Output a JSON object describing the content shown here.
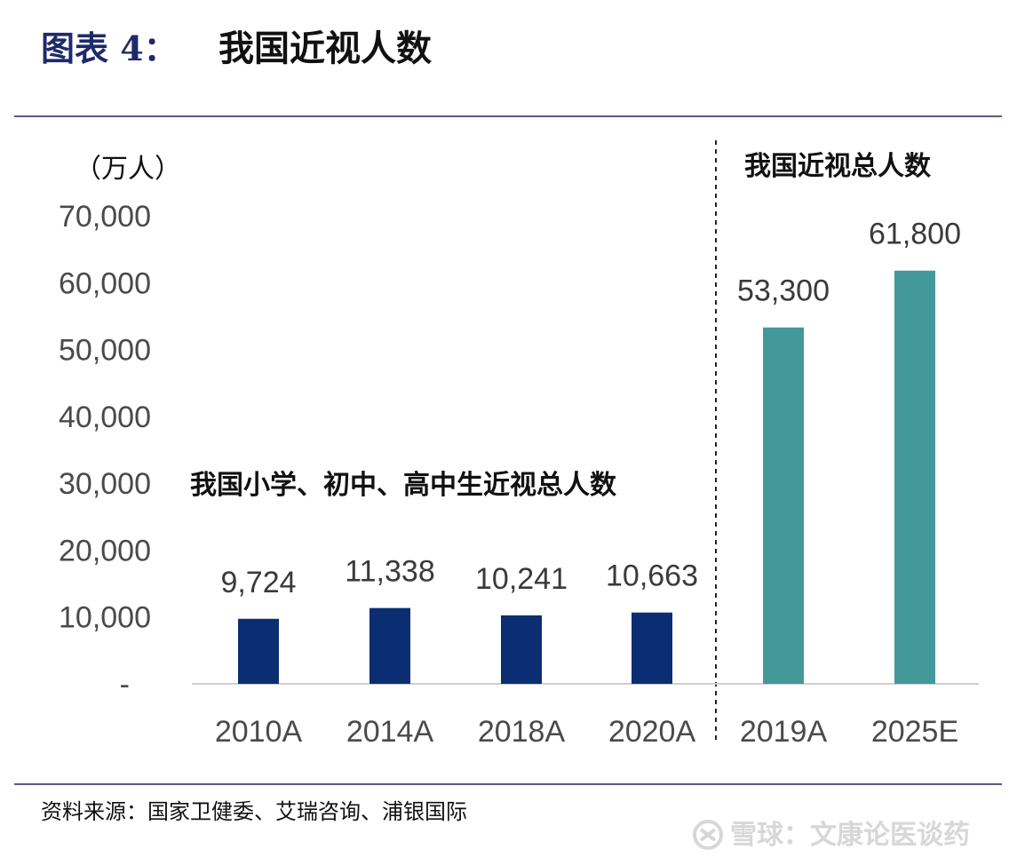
{
  "header": {
    "figure_label": "图表 4：",
    "title": "我国近视人数"
  },
  "unit_label": "（万人）",
  "chart_data": {
    "type": "bar",
    "title": "我国近视人数",
    "ylabel": "（万人）",
    "ylim": [
      0,
      70000
    ],
    "y_ticks": [
      {
        "value": 0,
        "label": "-"
      },
      {
        "value": 10000,
        "label": "10,000"
      },
      {
        "value": 20000,
        "label": "20,000"
      },
      {
        "value": 30000,
        "label": "30,000"
      },
      {
        "value": 40000,
        "label": "40,000"
      },
      {
        "value": 50000,
        "label": "50,000"
      },
      {
        "value": 60000,
        "label": "60,000"
      },
      {
        "value": 70000,
        "label": "70,000"
      }
    ],
    "grid": false,
    "legend": "none",
    "groups": [
      {
        "label": "我国小学、初中、高中生近视总人数",
        "color": "#0b2e72",
        "bars": [
          {
            "category": "2010A",
            "value": 9724,
            "value_label": "9,724"
          },
          {
            "category": "2014A",
            "value": 11338,
            "value_label": "11,338"
          },
          {
            "category": "2018A",
            "value": 10241,
            "value_label": "10,241"
          },
          {
            "category": "2020A",
            "value": 10663,
            "value_label": "10,663"
          }
        ]
      },
      {
        "label": "我国近视总人数",
        "color": "#43999a",
        "bars": [
          {
            "category": "2019A",
            "value": 53300,
            "value_label": "53,300"
          },
          {
            "category": "2025E",
            "value": 61800,
            "value_label": "61,800"
          }
        ]
      }
    ]
  },
  "source": "资料来源：国家卫健委、艾瑞咨询、浦银国际",
  "watermark": {
    "icon": "xueqiu-logo-icon",
    "text": "雪球：文康论医谈药"
  },
  "colors": {
    "rule": "#5a5888",
    "axis": "#cfcfcf",
    "divider": "#222222"
  }
}
